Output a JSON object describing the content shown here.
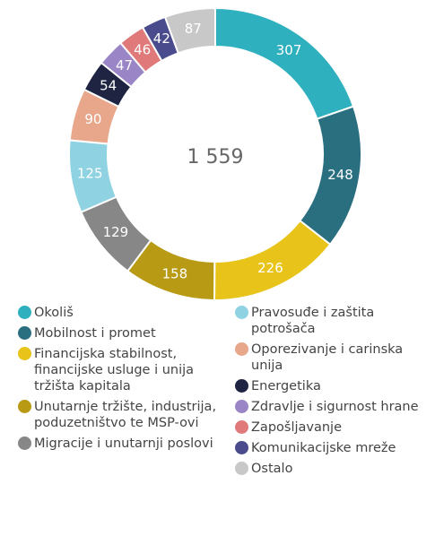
{
  "chart_data": {
    "type": "donut",
    "center_label": "1 559",
    "categories": [
      "Okoliš",
      "Mobilnost i promet",
      "Financijska stabilnost, financijske usluge i unija tržišta kapitala",
      "Unutarnje tržište, industrija, poduzetništvo te MSP-ovi",
      "Migracije i unutarnji poslovi",
      "Pravosuđe i zaštita potrošača",
      "Oporezivanje i carinska unija",
      "Energetika",
      "Zdravlje i sigurnost hrane",
      "Zapošljavanje",
      "Komunikacijske mreže",
      "Ostalo"
    ],
    "values": [
      307,
      248,
      226,
      158,
      129,
      125,
      90,
      54,
      47,
      46,
      42,
      87
    ],
    "colors": [
      "#2fb0bf",
      "#2a6f80",
      "#e8c41a",
      "#b89a14",
      "#878787",
      "#8fd3e3",
      "#e8a68a",
      "#1e2442",
      "#9a85c7",
      "#e07a7a",
      "#4a4b8c",
      "#c8c8c8"
    ]
  }
}
